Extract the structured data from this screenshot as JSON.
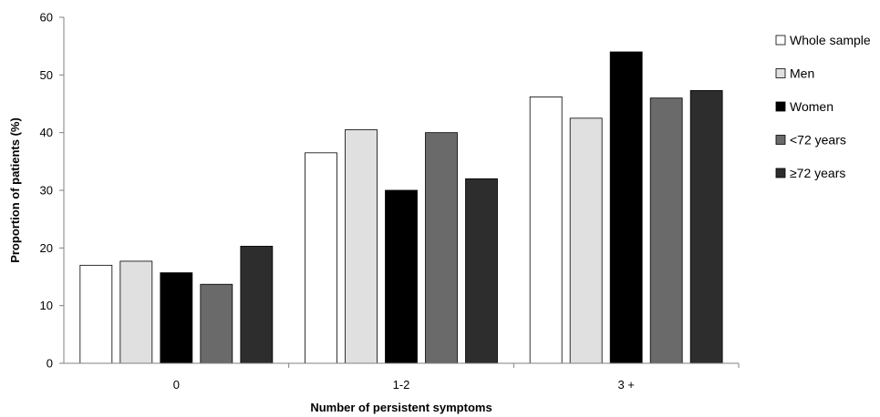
{
  "chart_data": {
    "type": "bar",
    "title": "",
    "xlabel": "Number of persistent symptoms",
    "ylabel": "Proportion of patients (%)",
    "ylim": [
      0,
      60
    ],
    "yticks": [
      0,
      10,
      20,
      30,
      40,
      50,
      60
    ],
    "categories": [
      "0",
      "1-2",
      "3 +"
    ],
    "series": [
      {
        "name": "Whole sample",
        "color": "#ffffff",
        "values": [
          17,
          36.5,
          46.2
        ]
      },
      {
        "name": "Men",
        "color": "#e0e0e0",
        "values": [
          17.7,
          40.5,
          42.5
        ]
      },
      {
        "name": "Women",
        "color": "#000000",
        "values": [
          15.7,
          30,
          54
        ]
      },
      {
        "name": "<72 years",
        "color": "#6a6a6a",
        "values": [
          13.7,
          40,
          46
        ]
      },
      {
        "name": "≥72 years",
        "color": "#2d2d2d",
        "values": [
          20.3,
          32,
          47.3
        ]
      }
    ],
    "grid": false,
    "legend_position": "right"
  }
}
